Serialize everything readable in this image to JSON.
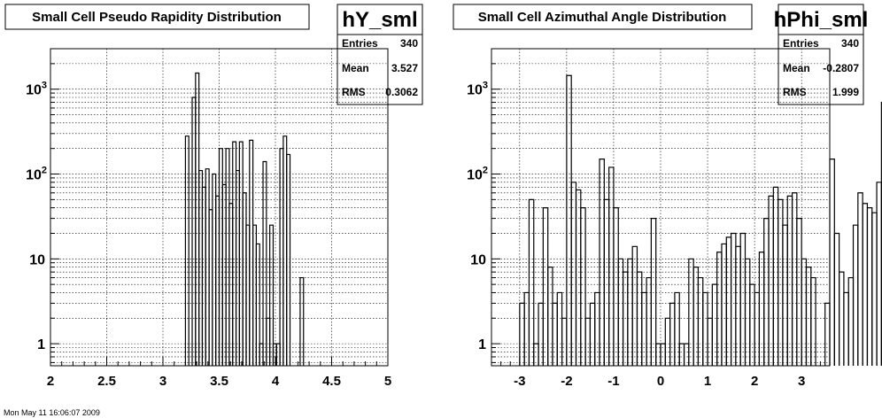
{
  "footer": "Mon May 11 16:06:07 2009",
  "chart_data": [
    {
      "type": "bar",
      "title": "Small Cell Pseudo Rapidity Distribution",
      "name": "hY_sml",
      "stats": [
        {
          "label": "Entries",
          "value": "340"
        },
        {
          "label": "Mean",
          "value": "3.527"
        },
        {
          "label": "RMS",
          "value": "0.3062"
        }
      ],
      "xlim": [
        2,
        5
      ],
      "ylim": [
        0.55,
        3000
      ],
      "log_y": true,
      "grid": true,
      "xticks": [
        {
          "v": 2,
          "label": "2"
        },
        {
          "v": 2.5,
          "label": "2.5"
        },
        {
          "v": 3,
          "label": "3"
        },
        {
          "v": 3.5,
          "label": "3.5"
        },
        {
          "v": 4,
          "label": "4"
        },
        {
          "v": 4.5,
          "label": "4.5"
        },
        {
          "v": 5,
          "label": "5"
        }
      ],
      "yticks": [
        {
          "v": 1,
          "label": "1"
        },
        {
          "v": 10,
          "label": "10"
        },
        {
          "v": 100,
          "label": "10",
          "exp": "2"
        },
        {
          "v": 1000,
          "label": "10",
          "exp": "3"
        }
      ],
      "bin_edges_start": 3.2,
      "bin_width": 0.03,
      "counts": [
        280,
        0,
        800,
        1550,
        110,
        70,
        115,
        38,
        100,
        55,
        200,
        75,
        200,
        45,
        240,
        110,
        240,
        60,
        25,
        250,
        25,
        15,
        1,
        140,
        2,
        25,
        1,
        1,
        200,
        280,
        170,
        0,
        0,
        0,
        6
      ]
    },
    {
      "type": "bar",
      "title": "Small Cell Azimuthal Angle Distribution",
      "name": "hPhi_sml",
      "stats": [
        {
          "label": "Entries",
          "value": "340"
        },
        {
          "label": "Mean",
          "value": "-0.2807"
        },
        {
          "label": "RMS",
          "value": "1.999"
        }
      ],
      "xlim": [
        -3.6,
        3.6
      ],
      "ylim": [
        0.55,
        3000
      ],
      "log_y": true,
      "grid": true,
      "xticks": [
        {
          "v": -3,
          "label": "-3"
        },
        {
          "v": -2,
          "label": "-2"
        },
        {
          "v": -1,
          "label": "-1"
        },
        {
          "v": 0,
          "label": "0"
        },
        {
          "v": 1,
          "label": "1"
        },
        {
          "v": 2,
          "label": "2"
        },
        {
          "v": 3,
          "label": "3"
        }
      ],
      "yticks": [
        {
          "v": 1,
          "label": "1"
        },
        {
          "v": 10,
          "label": "10"
        },
        {
          "v": 100,
          "label": "10",
          "exp": "2"
        },
        {
          "v": 1000,
          "label": "10",
          "exp": "3"
        }
      ],
      "bin_edges_start": -3.0,
      "bin_width": 0.1,
      "counts": [
        3,
        4,
        50,
        1,
        3,
        40,
        8,
        3,
        4,
        2,
        1450,
        80,
        65,
        40,
        2,
        3,
        4,
        150,
        50,
        120,
        40,
        10,
        7,
        10,
        14,
        7,
        4,
        6,
        30,
        1,
        1,
        2,
        3,
        4,
        1,
        1,
        10,
        8,
        6,
        4,
        2,
        5,
        12,
        15,
        18,
        20,
        14,
        20,
        10,
        5,
        4,
        12,
        30,
        55,
        70,
        50,
        25,
        55,
        60,
        30,
        10,
        8,
        6,
        0,
        0,
        3,
        150,
        20,
        7,
        4,
        6,
        25,
        60,
        45,
        40,
        35,
        80,
        700,
        0,
        0,
        0,
        0,
        0,
        0,
        0
      ]
    }
  ]
}
